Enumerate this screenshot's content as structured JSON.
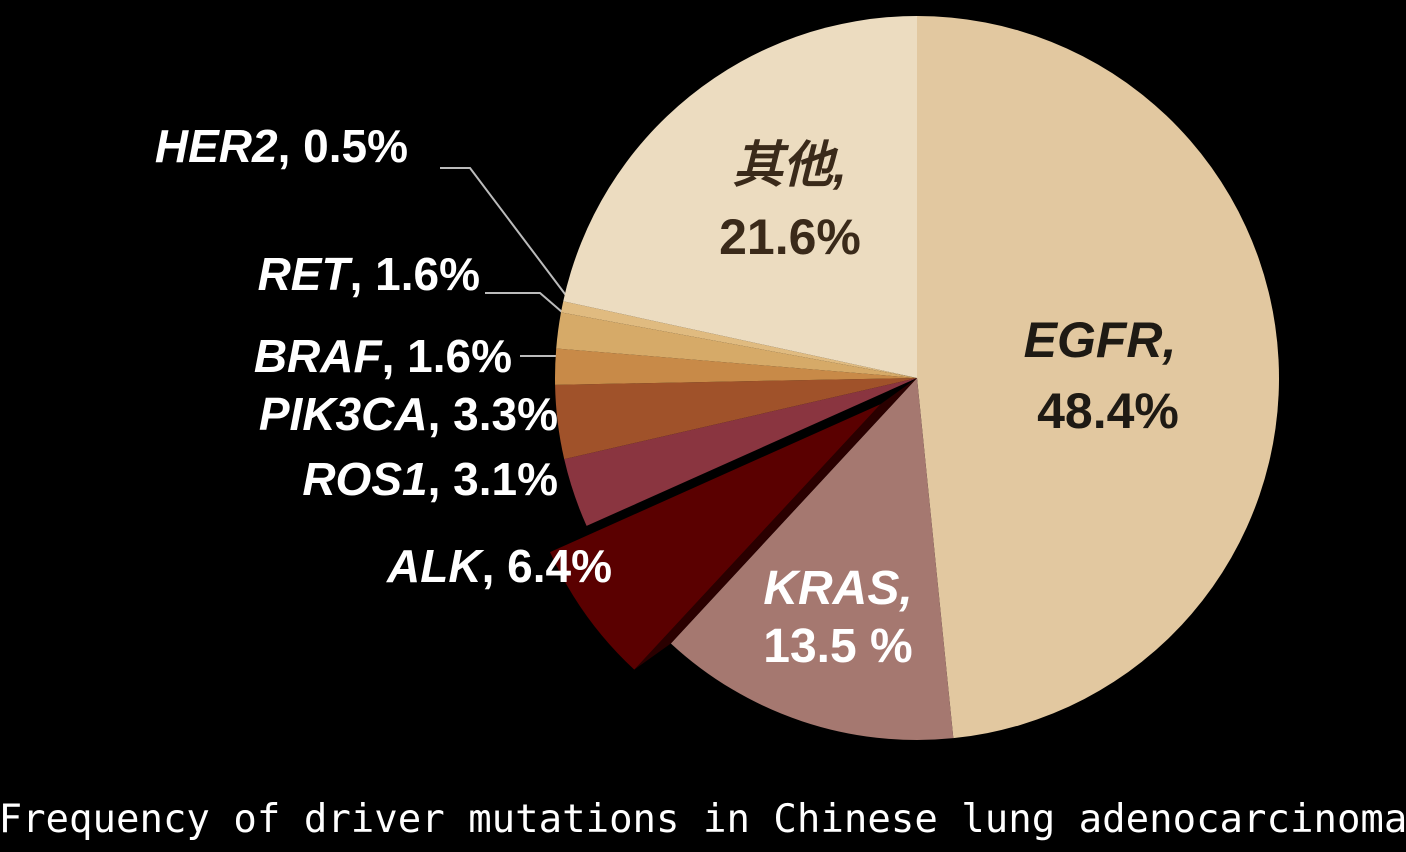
{
  "chart_data": {
    "type": "pie",
    "title": "Frequency of driver mutations in Chinese lung adenocarcinoma",
    "categories": [
      "EGFR,",
      "KRAS,",
      "ALK",
      "ROS1",
      "PIK3CA",
      "BRAF",
      "RET",
      "HER2",
      "其他,"
    ],
    "values": [
      48.4,
      13.5,
      6.4,
      3.1,
      3.3,
      1.6,
      1.6,
      0.5,
      21.6
    ],
    "value_labels": [
      "48.4%",
      "13.5 %",
      ", 6.4%",
      ", 3.1%",
      ", 3.3%",
      ", 1.6%",
      ", 1.6%",
      ", 0.5%",
      "21.6%"
    ],
    "colors": [
      "#e2c8a0",
      "#a57870",
      "#5a0000",
      "#8a3540",
      "#a0522a",
      "#c88a48",
      "#d6aa68",
      "#e0bb80",
      "#ecdcc0"
    ],
    "exploded": [
      "ALK"
    ]
  }
}
